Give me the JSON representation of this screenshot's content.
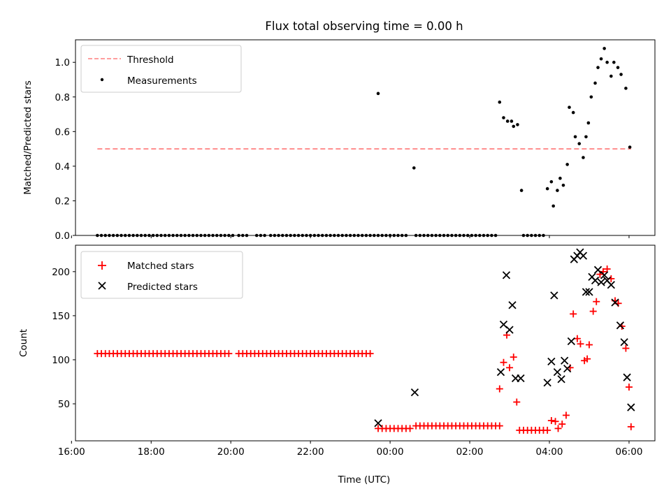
{
  "figure": {
    "title": "Flux total observing time = 0.00 h"
  },
  "chart_data": [
    {
      "type": "line+scatter",
      "title": "Flux total observing time = 0.00 h",
      "xlabel": "",
      "ylabel": "Matched/Predicted stars",
      "xlim": [
        -7.9,
        6.65
      ],
      "ylim": [
        0,
        1.13
      ],
      "xticks": [
        -8,
        -6,
        -4,
        -2,
        0,
        2,
        4,
        6
      ],
      "yticks": [
        0.0,
        0.2,
        0.4,
        0.6,
        0.8,
        1.0
      ],
      "ytick_labels": [
        "0.0",
        "0.2",
        "0.4",
        "0.6",
        "0.8",
        "1.0"
      ],
      "legend_position": "upper-left",
      "series": [
        {
          "name": "Threshold",
          "style": "dashed-line",
          "color": "#ff7f7f",
          "x": [
            -7.35,
            6.05
          ],
          "y": [
            0.5,
            0.5
          ]
        },
        {
          "name": "Measurements",
          "style": "dot",
          "color": "#000000",
          "zero_runs": [
            {
              "x_start": -7.35,
              "x_end": -3.9,
              "step": 0.1,
              "y": 0
            },
            {
              "x_start": -3.8,
              "x_end": -3.55,
              "step": 0.1,
              "y": 0
            },
            {
              "x_start": -3.35,
              "x_end": -3.15,
              "step": 0.1,
              "y": 0
            },
            {
              "x_start": -3.0,
              "x_end": -0.35,
              "step": 0.1,
              "y": 0
            },
            {
              "x_start": -0.3,
              "x_end": 0.45,
              "step": 0.1,
              "y": 0
            },
            {
              "x_start": 0.65,
              "x_end": 2.7,
              "step": 0.1,
              "y": 0
            },
            {
              "x_start": 3.35,
              "x_end": 3.9,
              "step": 0.1,
              "y": 0
            }
          ],
          "points": [
            [
              -0.3,
              0.82
            ],
            [
              0.6,
              0.39
            ],
            [
              2.75,
              0.77
            ],
            [
              2.85,
              0.68
            ],
            [
              2.95,
              0.66
            ],
            [
              3.05,
              0.66
            ],
            [
              3.1,
              0.63
            ],
            [
              3.2,
              0.64
            ],
            [
              3.3,
              0.26
            ],
            [
              3.95,
              0.27
            ],
            [
              4.05,
              0.31
            ],
            [
              4.1,
              0.17
            ],
            [
              4.2,
              0.26
            ],
            [
              4.27,
              0.33
            ],
            [
              4.35,
              0.29
            ],
            [
              4.45,
              0.41
            ],
            [
              4.5,
              0.74
            ],
            [
              4.6,
              0.71
            ],
            [
              4.65,
              0.57
            ],
            [
              4.75,
              0.53
            ],
            [
              4.85,
              0.45
            ],
            [
              4.92,
              0.57
            ],
            [
              4.98,
              0.65
            ],
            [
              5.05,
              0.8
            ],
            [
              5.15,
              0.88
            ],
            [
              5.22,
              0.97
            ],
            [
              5.3,
              1.02
            ],
            [
              5.38,
              1.08
            ],
            [
              5.45,
              1.0
            ],
            [
              5.55,
              0.92
            ],
            [
              5.62,
              1.0
            ],
            [
              5.72,
              0.97
            ],
            [
              5.8,
              0.93
            ],
            [
              5.92,
              0.85
            ],
            [
              6.02,
              0.51
            ]
          ]
        }
      ]
    },
    {
      "type": "scatter",
      "title": "",
      "xlabel": "Time (UTC)",
      "ylabel": "Count",
      "xlim": [
        -7.9,
        6.65
      ],
      "ylim": [
        8,
        230
      ],
      "xticks": [
        -8,
        -6,
        -4,
        -2,
        0,
        2,
        4,
        6
      ],
      "xtick_labels": [
        "16:00",
        "18:00",
        "20:00",
        "22:00",
        "00:00",
        "02:00",
        "04:00",
        "06:00"
      ],
      "yticks": [
        50,
        100,
        150,
        200
      ],
      "ytick_labels": [
        "50",
        "100",
        "150",
        "200"
      ],
      "legend_position": "upper-left",
      "series": [
        {
          "name": "Matched stars",
          "marker": "+",
          "color": "#ff0000",
          "constant_runs": [
            {
              "x_start": -7.35,
              "x_end": -4.0,
              "step": 0.1,
              "y": 107
            },
            {
              "x_start": -3.8,
              "x_end": -0.45,
              "step": 0.1,
              "y": 107
            },
            {
              "x_start": -0.3,
              "x_end": 0.55,
              "step": 0.1,
              "y": 22
            },
            {
              "x_start": 0.65,
              "x_end": 2.75,
              "step": 0.1,
              "y": 25
            },
            {
              "x_start": 3.25,
              "x_end": 3.95,
              "step": 0.1,
              "y": 20
            }
          ],
          "points": [
            [
              2.75,
              67
            ],
            [
              2.85,
              97
            ],
            [
              2.93,
              128
            ],
            [
              3.0,
              91
            ],
            [
              3.1,
              103
            ],
            [
              3.18,
              52
            ],
            [
              4.05,
              31
            ],
            [
              4.15,
              30
            ],
            [
              4.22,
              22
            ],
            [
              4.32,
              27
            ],
            [
              4.42,
              37
            ],
            [
              4.52,
              91
            ],
            [
              4.6,
              152
            ],
            [
              4.7,
              124
            ],
            [
              4.78,
              118
            ],
            [
              4.88,
              99
            ],
            [
              4.95,
              101
            ],
            [
              5.0,
              117
            ],
            [
              5.1,
              155
            ],
            [
              5.18,
              166
            ],
            [
              5.27,
              197
            ],
            [
              5.35,
              200
            ],
            [
              5.45,
              203
            ],
            [
              5.55,
              192
            ],
            [
              5.65,
              167
            ],
            [
              5.73,
              164
            ],
            [
              5.82,
              138
            ],
            [
              5.92,
              113
            ],
            [
              6.0,
              69
            ],
            [
              6.05,
              24
            ]
          ]
        },
        {
          "name": "Predicted stars",
          "marker": "x",
          "color": "#000000",
          "points": [
            [
              -0.3,
              28
            ],
            [
              0.62,
              63
            ],
            [
              2.78,
              86
            ],
            [
              2.85,
              140
            ],
            [
              2.92,
              196
            ],
            [
              3.0,
              134
            ],
            [
              3.07,
              162
            ],
            [
              3.15,
              79
            ],
            [
              3.28,
              79
            ],
            [
              3.95,
              74
            ],
            [
              4.05,
              98
            ],
            [
              4.12,
              173
            ],
            [
              4.2,
              86
            ],
            [
              4.3,
              78
            ],
            [
              4.38,
              99
            ],
            [
              4.45,
              90
            ],
            [
              4.55,
              121
            ],
            [
              4.62,
              214
            ],
            [
              4.7,
              218
            ],
            [
              4.77,
              222
            ],
            [
              4.85,
              218
            ],
            [
              4.92,
              177
            ],
            [
              5.0,
              177
            ],
            [
              5.07,
              194
            ],
            [
              5.15,
              190
            ],
            [
              5.22,
              202
            ],
            [
              5.3,
              188
            ],
            [
              5.38,
              196
            ],
            [
              5.45,
              190
            ],
            [
              5.55,
              185
            ],
            [
              5.65,
              165
            ],
            [
              5.78,
              139
            ],
            [
              5.88,
              120
            ],
            [
              5.95,
              80
            ],
            [
              6.05,
              46
            ]
          ]
        }
      ]
    }
  ]
}
